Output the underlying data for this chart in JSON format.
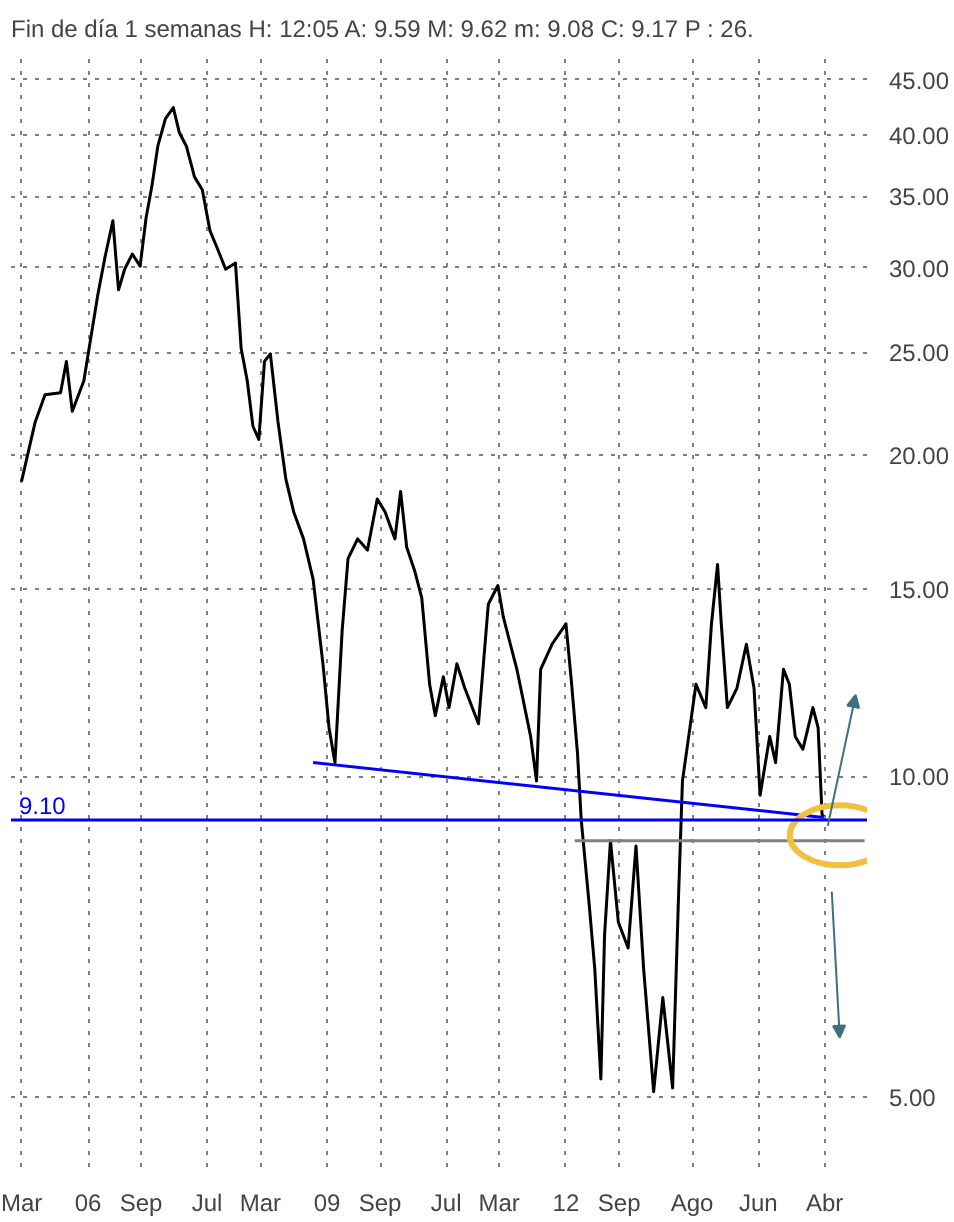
{
  "chart_data": {
    "type": "line",
    "title": "Fin de día 1 semanas  H: 12:05  A: 9.59  M: 9.62  m: 9.08  C: 9.17  P : 26.",
    "xlim": [
      "2005-01-13",
      "2015-10-12"
    ],
    "ylim": [
      4.3,
      47.7
    ],
    "log": true,
    "grid": true,
    "marker": "none",
    "line_style": "solid",
    "xticks": [
      {
        "value": "2005-03-01",
        "label": "Mar"
      },
      {
        "value": "2006-01-01",
        "label": "06"
      },
      {
        "value": "2006-09-01",
        "label": "Sep"
      },
      {
        "value": "2007-07-01",
        "label": "Jul"
      },
      {
        "value": "2008-03-01",
        "label": "Mar"
      },
      {
        "value": "2009-01-01",
        "label": "09"
      },
      {
        "value": "2009-09-01",
        "label": "Sep"
      },
      {
        "value": "2010-07-01",
        "label": "Jul"
      },
      {
        "value": "2011-03-01",
        "label": "Mar"
      },
      {
        "value": "2012-01-01",
        "label": "12"
      },
      {
        "value": "2012-09-01",
        "label": "Sep"
      },
      {
        "value": "2013-08-01",
        "label": "Ago"
      },
      {
        "value": "2014-06-01",
        "label": "Jun"
      },
      {
        "value": "2015-04-01",
        "label": "Abr"
      }
    ],
    "yticks": [
      {
        "value": 5,
        "label": "5.00"
      },
      {
        "value": 10,
        "label": "10.00"
      },
      {
        "value": 15,
        "label": "15.00"
      },
      {
        "value": 20,
        "label": "20.00"
      },
      {
        "value": 25,
        "label": "25.00"
      },
      {
        "value": 30,
        "label": "30.00"
      },
      {
        "value": 35,
        "label": "35.00"
      },
      {
        "value": 40,
        "label": "40.00"
      },
      {
        "value": 45,
        "label": "45.00"
      }
    ],
    "ref_lines": [
      {
        "axis": "y",
        "value": 9.1,
        "label": "9.10",
        "color": "#0000ff",
        "line_style": "solid"
      }
    ],
    "series": [
      {
        "color": "#000000",
        "x": [
          "2005-03-02",
          "2005-05-04",
          "2005-06-18",
          "2005-08-28",
          "2005-09-24",
          "2005-10-21",
          "2005-12-13",
          "2006-01-10",
          "2006-02-15",
          "2006-03-20",
          "2006-04-25",
          "2006-05-21",
          "2006-06-18",
          "2006-07-23",
          "2006-08-28",
          "2006-09-24",
          "2006-10-21",
          "2006-11-17",
          "2006-12-22",
          "2007-01-27",
          "2007-02-23",
          "2007-03-28",
          "2007-05-04",
          "2007-06-09",
          "2007-07-14",
          "2007-08-19",
          "2007-09-24",
          "2007-11-08",
          "2007-12-04",
          "2008-01-01",
          "2008-01-27",
          "2008-02-23",
          "2008-03-20",
          "2008-04-16",
          "2008-05-21",
          "2008-06-26",
          "2008-08-01",
          "2008-09-15",
          "2008-10-29",
          "2008-12-13",
          "2009-01-10",
          "2009-02-06",
          "2009-03-11",
          "2009-04-07",
          "2009-05-21",
          "2009-07-05",
          "2009-08-19",
          "2009-09-24",
          "2009-11-08",
          "2009-12-04",
          "2010-01-01",
          "2010-02-06",
          "2010-03-11",
          "2010-04-16",
          "2010-05-12",
          "2010-06-18",
          "2010-07-14",
          "2010-08-19",
          "2010-09-24",
          "2010-11-26",
          "2011-01-10",
          "2011-02-23",
          "2011-03-20",
          "2011-05-21",
          "2011-07-23",
          "2011-08-19",
          "2011-09-07",
          "2011-10-29",
          "2012-01-01",
          "2012-01-27",
          "2012-02-23",
          "2012-03-11",
          "2012-04-16",
          "2012-05-12",
          "2012-06-09",
          "2012-06-26",
          "2012-07-23",
          "2012-08-28",
          "2012-10-12",
          "2012-11-17",
          "2012-12-22",
          "2013-02-06",
          "2013-03-20",
          "2013-05-04",
          "2013-05-30",
          "2013-06-18",
          "2013-07-14",
          "2013-08-19",
          "2013-10-03",
          "2013-10-29",
          "2013-11-26",
          "2013-12-13",
          "2014-01-10",
          "2014-02-23",
          "2014-04-07",
          "2014-05-12",
          "2014-06-09",
          "2014-07-23",
          "2014-08-19",
          "2014-09-24",
          "2014-10-21",
          "2014-11-17",
          "2014-12-22",
          "2015-02-06",
          "2015-03-02",
          "2015-03-20",
          "2015-03-28"
        ],
        "values": [
          18.9,
          21.5,
          22.8,
          22.9,
          24.5,
          22,
          23.5,
          25.5,
          28.3,
          30.7,
          33.2,
          28.6,
          29.9,
          30.9,
          30.1,
          33.4,
          35.8,
          39,
          41.4,
          42.4,
          40.2,
          39,
          36.5,
          35.5,
          32.5,
          31.2,
          29.9,
          30.3,
          25.2,
          23.5,
          21.3,
          20.7,
          24.5,
          24.9,
          21.5,
          19,
          17.7,
          16.7,
          15.3,
          12.75,
          11.1,
          10.3,
          13.7,
          16,
          16.7,
          16.3,
          18.2,
          17.7,
          16.7,
          18.5,
          16.4,
          15.6,
          14.7,
          12.2,
          11.4,
          12.4,
          11.6,
          12.75,
          12.1,
          11.2,
          14.5,
          15.1,
          14.1,
          12.6,
          10.9,
          9.9,
          12.6,
          13.3,
          13.9,
          12.2,
          10.5,
          9.1,
          7.6,
          6.6,
          5.2,
          7.1,
          8.7,
          7.3,
          6.9,
          8.6,
          6.6,
          5.06,
          6.2,
          5.1,
          7.6,
          9.9,
          10.8,
          12.2,
          11.6,
          13.9,
          15.8,
          13.9,
          11.6,
          12.1,
          13.3,
          12.1,
          9.6,
          10.9,
          10.3,
          12.6,
          12.2,
          10.9,
          10.6,
          11.6,
          11.1,
          9.2,
          9.17
        ]
      },
      {
        "type": "line",
        "color": "#0000ff",
        "x": [
          "2008-10-29",
          "2015-03-28"
        ],
        "values": [
          10.3,
          9.15
        ]
      },
      {
        "type": "line",
        "color": "#808080",
        "x": [
          "2012-02-10",
          "2015-10-01"
        ],
        "values": [
          8.7,
          8.7
        ]
      }
    ]
  }
}
